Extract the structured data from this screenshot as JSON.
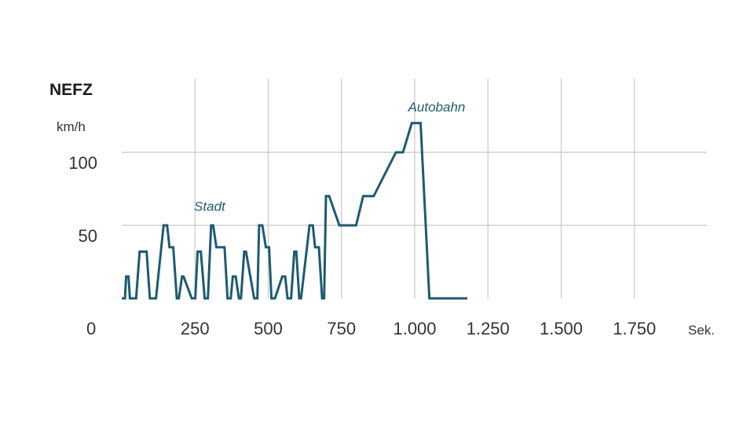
{
  "chart_data": {
    "type": "line",
    "title": "NEFZ",
    "ylabel": "km/h",
    "xunit": "Sek.",
    "xlim": [
      0,
      1950
    ],
    "ylim": [
      0,
      120
    ],
    "x_ticks": [
      {
        "value": 250,
        "label": "250"
      },
      {
        "value": 500,
        "label": "500"
      },
      {
        "value": 750,
        "label": "750"
      },
      {
        "value": 1000,
        "label": "1.000"
      },
      {
        "value": 1250,
        "label": "1.250"
      },
      {
        "value": 1500,
        "label": "1.500"
      },
      {
        "value": 1750,
        "label": "1.750"
      }
    ],
    "y_ticks": [
      {
        "value": 0,
        "label": "0"
      },
      {
        "value": 50,
        "label": "50"
      },
      {
        "value": 100,
        "label": "100"
      }
    ],
    "origin_label": "0",
    "grid": true,
    "line_color": "#1d5b70",
    "annotations": [
      {
        "text": "Stadt",
        "x": 300,
        "y": 60
      },
      {
        "text": "Autobahn",
        "x": 1075,
        "y": 128
      }
    ],
    "series": [
      {
        "x": [
          0,
          11,
          15,
          23,
          28,
          49,
          61,
          85,
          96,
          117,
          143,
          155,
          163,
          176,
          188,
          195,
          206,
          211,
          239,
          251,
          259,
          270,
          283,
          294,
          305,
          312,
          323,
          351,
          361,
          372,
          379,
          389,
          400,
          407,
          418,
          424,
          452,
          463,
          469,
          480,
          492,
          503,
          511,
          523,
          548,
          558,
          566,
          578,
          589,
          596,
          606,
          612,
          641,
          652,
          660,
          673,
          684,
          691,
          697,
          708,
          743,
          800,
          824,
          860,
          936,
          960,
          990,
          1020,
          1050,
          1060,
          1080,
          1120,
          1150,
          1180
        ],
        "y": [
          0,
          0,
          15,
          15,
          0,
          0,
          32,
          32,
          0,
          0,
          50,
          50,
          35,
          35,
          0,
          0,
          15,
          15,
          0,
          0,
          32,
          32,
          0,
          0,
          50,
          50,
          35,
          35,
          0,
          0,
          15,
          15,
          0,
          0,
          32,
          32,
          0,
          0,
          50,
          50,
          35,
          35,
          0,
          0,
          15,
          15,
          0,
          0,
          32,
          32,
          0,
          0,
          50,
          50,
          35,
          35,
          0,
          0,
          70,
          70,
          50,
          50,
          70,
          70,
          100,
          100,
          120,
          120,
          0,
          0,
          0,
          0,
          0,
          0
        ]
      }
    ]
  }
}
